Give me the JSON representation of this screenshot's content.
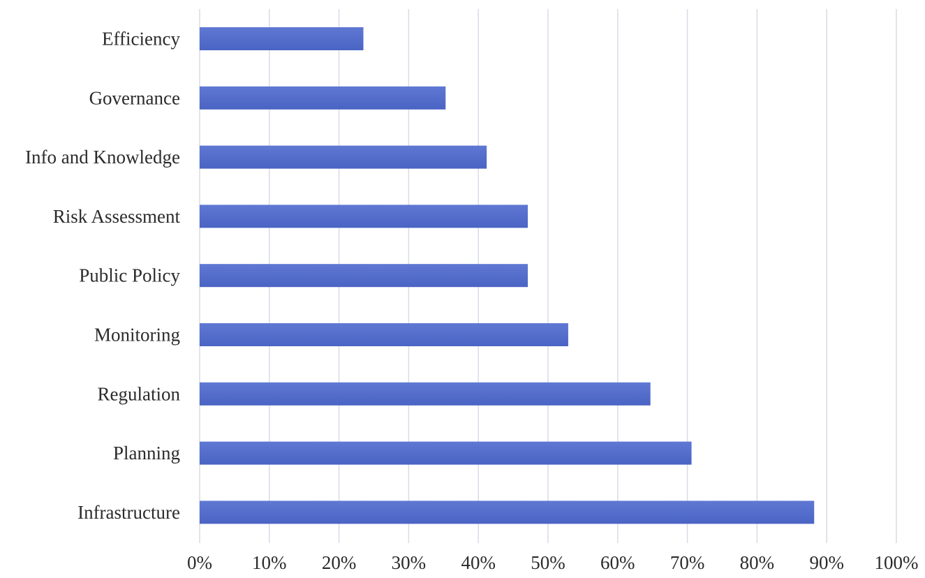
{
  "chart_data": {
    "type": "bar",
    "orientation": "horizontal",
    "title": "",
    "xlabel": "",
    "ylabel": "",
    "categories": [
      "Efficiency",
      "Governance",
      "Info and Knowledge",
      "Risk Assessment",
      "Public Policy",
      "Monitoring",
      "Regulation",
      "Planning",
      "Infrastructure"
    ],
    "values": [
      23.5,
      35.3,
      41.2,
      47.1,
      47.1,
      52.9,
      64.7,
      70.6,
      88.2
    ],
    "xlim": [
      0,
      100
    ],
    "x_ticks": [
      "0%",
      "10%",
      "20%",
      "30%",
      "40%",
      "50%",
      "60%",
      "70%",
      "80%",
      "90%",
      "100%"
    ],
    "grid": true,
    "legend": "none",
    "colors": {
      "bar": "#4a64c4",
      "bar_light": "#5f78d3",
      "grid": "#d9dbe6",
      "text": "#2b2b2b"
    }
  }
}
